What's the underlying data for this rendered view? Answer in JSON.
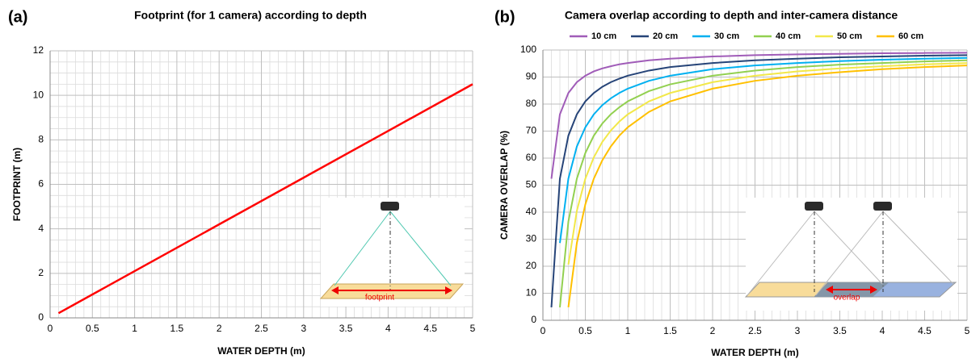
{
  "chart_data": [
    {
      "type": "line",
      "panel_label": "(a)",
      "title": "Footprint (for 1 camera) according to depth",
      "x_label": "WATER DEPTH (m)",
      "y_label": "FOOTPRINT (m)",
      "x": [
        0.1,
        1,
        2,
        3,
        4,
        5
      ],
      "values": [
        0.21,
        2.1,
        4.2,
        6.3,
        8.4,
        10.5
      ],
      "color": "#ff0000",
      "xlim": [
        0,
        5
      ],
      "xticks": [
        0,
        0.5,
        1,
        1.5,
        2,
        2.5,
        3,
        3.5,
        4,
        4.5,
        5
      ],
      "ylim": [
        0,
        12
      ],
      "yticks": [
        0,
        2,
        4,
        6,
        8,
        10,
        12
      ],
      "grid": true,
      "annotation": "footprint"
    },
    {
      "type": "line",
      "panel_label": "(b)",
      "title": "Camera overlap according to depth and inter-camera distance",
      "x_label": "WATER DEPTH (m)",
      "y_label": "CAMERA OVERLAP (%)",
      "x": [
        0.1,
        0.2,
        0.3,
        0.4,
        0.5,
        0.6,
        0.7,
        0.8,
        0.9,
        1,
        1.25,
        1.5,
        2,
        2.5,
        3,
        3.5,
        4,
        4.5,
        5
      ],
      "series": [
        {
          "name": "10 cm",
          "color": "#a05cb8",
          "values": [
            52.4,
            76.2,
            84.1,
            88.1,
            90.5,
            92.1,
            93.2,
            94.0,
            94.7,
            95.2,
            96.2,
            96.8,
            97.6,
            98.1,
            98.4,
            98.6,
            98.8,
            98.9,
            99.0
          ]
        },
        {
          "name": "20 cm",
          "color": "#264478",
          "values": [
            4.8,
            52.4,
            68.3,
            76.2,
            81.0,
            84.1,
            86.4,
            88.1,
            89.4,
            90.5,
            92.4,
            93.7,
            95.2,
            96.2,
            96.8,
            97.3,
            97.6,
            97.9,
            98.1
          ]
        },
        {
          "name": "30 cm",
          "color": "#00b0f0",
          "values": [
            null,
            28.6,
            52.4,
            64.3,
            71.4,
            76.2,
            79.6,
            82.1,
            84.1,
            85.7,
            88.6,
            90.5,
            92.9,
            94.3,
            95.2,
            95.9,
            96.4,
            96.8,
            97.1
          ]
        },
        {
          "name": "40 cm",
          "color": "#92d050",
          "values": [
            null,
            4.8,
            36.5,
            52.4,
            61.9,
            68.3,
            72.8,
            76.2,
            78.8,
            81.0,
            84.8,
            87.3,
            90.5,
            92.4,
            93.7,
            94.6,
            95.2,
            95.8,
            96.2
          ]
        },
        {
          "name": "50 cm",
          "color": "#f2e84a",
          "values": [
            null,
            null,
            20.6,
            40.5,
            52.4,
            60.3,
            66.0,
            70.2,
            73.5,
            76.2,
            81.0,
            84.1,
            88.1,
            90.5,
            92.1,
            93.2,
            94.0,
            94.7,
            95.2
          ]
        },
        {
          "name": "60 cm",
          "color": "#ffc000",
          "values": [
            null,
            null,
            4.8,
            28.6,
            42.9,
            52.4,
            59.2,
            64.3,
            68.3,
            71.4,
            77.1,
            81.0,
            85.7,
            88.6,
            90.5,
            91.8,
            92.9,
            93.7,
            94.3
          ]
        }
      ],
      "xlim": [
        0,
        5
      ],
      "xticks": [
        0,
        0.5,
        1,
        1.5,
        2,
        2.5,
        3,
        3.5,
        4,
        4.5,
        5
      ],
      "ylim": [
        0,
        100
      ],
      "yticks": [
        0,
        10,
        20,
        30,
        40,
        50,
        60,
        70,
        80,
        90,
        100
      ],
      "grid": true,
      "legend": "top",
      "annotation": "overlap"
    }
  ]
}
